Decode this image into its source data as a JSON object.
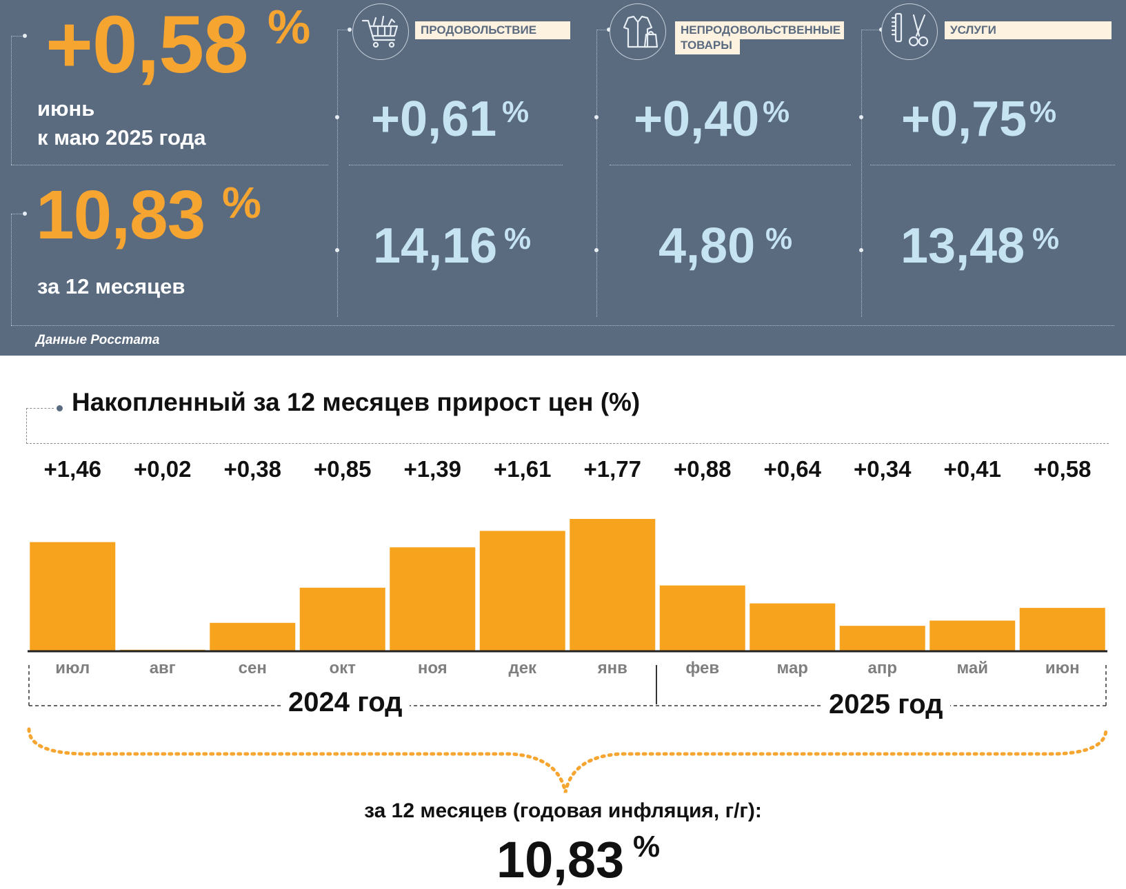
{
  "header": {
    "monthly_value": "+0,58",
    "percent_sign": "%",
    "monthly_caption_line1": "июнь",
    "monthly_caption_line2": "к маю 2025 года",
    "annual_value": "10,83",
    "annual_caption": "за 12 месяцев",
    "source": "Данные Росстата"
  },
  "categories": [
    {
      "label": "ПРОДОВОЛЬСТВИЕ",
      "icon": "shopping-cart-icon",
      "monthly": "+0,61",
      "annual": "14,16"
    },
    {
      "label_line1": "НЕПРОДОВОЛЬСТВЕННЫЕ",
      "label_line2": "ТОВАРЫ",
      "icon": "clothes-bag-icon",
      "monthly": "+0,40",
      "annual": "4,80"
    },
    {
      "label": "УСЛУГИ",
      "icon": "comb-scissors-icon",
      "monthly": "+0,75",
      "annual": "13,48"
    }
  ],
  "chart_title": "Накопленный за 12 месяцев прирост цен (%)",
  "chart_data": {
    "type": "bar",
    "categories": [
      "июл",
      "авг",
      "сен",
      "окт",
      "ноя",
      "дек",
      "янв",
      "фев",
      "мар",
      "апр",
      "май",
      "июн"
    ],
    "value_labels": [
      "+1,46",
      "+0,02",
      "+0,38",
      "+0,85",
      "+1,39",
      "+1,61",
      "+1,77",
      "+0,88",
      "+0,64",
      "+0,34",
      "+0,41",
      "+0,58"
    ],
    "values": [
      1.46,
      0.02,
      0.38,
      0.85,
      1.39,
      1.61,
      1.77,
      0.88,
      0.64,
      0.34,
      0.41,
      0.58
    ],
    "year_groups": [
      "2024 год",
      "2025 год"
    ],
    "bar_color": "#f7a31d"
  },
  "summary": {
    "label": "за 12 месяцев (годовая инфляция, г/г):",
    "value": "10,83",
    "percent_sign": "%"
  },
  "colors": {
    "panel": "#5a6b80",
    "accent_orange": "#f6a531",
    "light_blue": "#c6e3f2"
  }
}
